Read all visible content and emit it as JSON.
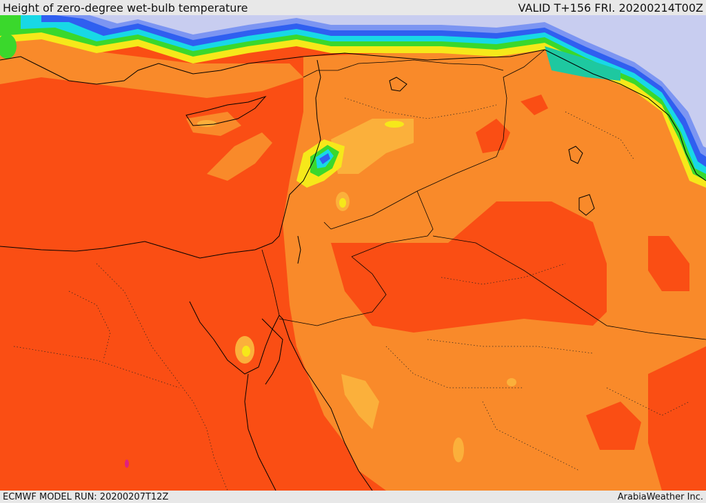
{
  "header": {
    "title": "Height of zero-degree wet-bulb temperature",
    "valid": "VALID T+156 FRI. 20200214T00Z"
  },
  "footer": {
    "model_run": "ECMWF MODEL RUN: 20200207T12Z",
    "credit": "ArabiaWeather Inc."
  },
  "colors": {
    "deep_orange": "#fa4e14",
    "orange": "#f98a2a",
    "light_orange": "#fbb03b",
    "yellow": "#f6e81a",
    "green": "#3ad82c",
    "cyan": "#18d8e6",
    "teal": "#1ec8a0",
    "blue": "#2f5ff0",
    "light_blue": "#7c95f2",
    "lavender": "#c8cdf0",
    "magenta": "#e0207f"
  }
}
